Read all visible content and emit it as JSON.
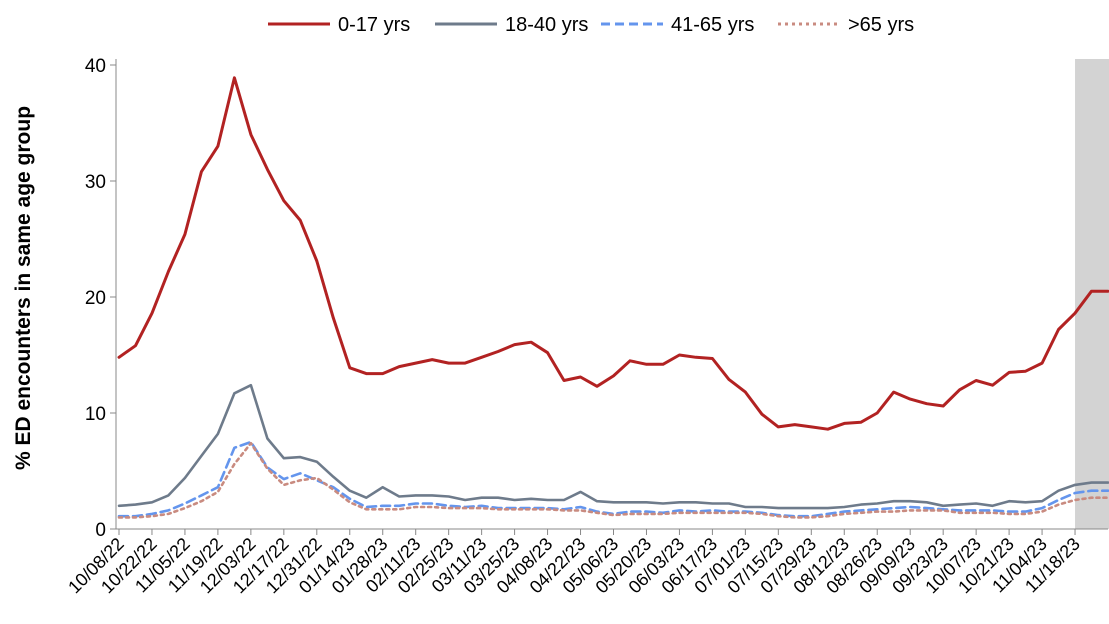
{
  "chart_data": {
    "type": "line",
    "title": "",
    "xlabel": "",
    "ylabel": "% ED encounters in same age group",
    "ylim": [
      0,
      40
    ],
    "yticks": [
      0,
      10,
      20,
      30,
      40
    ],
    "grid": false,
    "legend_position": "top",
    "x_tick_labels": [
      "10/08/22",
      "10/22/22",
      "11/05/22",
      "11/19/22",
      "12/03/22",
      "12/17/22",
      "12/31/22",
      "01/14/23",
      "01/28/23",
      "02/11/23",
      "02/25/23",
      "03/11/23",
      "03/25/23",
      "04/08/23",
      "04/22/23",
      "05/06/23",
      "05/20/23",
      "06/03/23",
      "06/17/23",
      "07/01/23",
      "07/15/23",
      "07/29/23",
      "08/12/23",
      "08/26/23",
      "09/09/23",
      "09/23/23",
      "10/07/23",
      "10/21/23",
      "11/04/23",
      "11/18/23"
    ],
    "x": [
      "10/08/22",
      "10/15/22",
      "10/22/22",
      "10/29/22",
      "11/05/22",
      "11/12/22",
      "11/19/22",
      "11/26/22",
      "12/03/22",
      "12/10/22",
      "12/17/22",
      "12/24/22",
      "12/31/22",
      "01/07/23",
      "01/14/23",
      "01/21/23",
      "01/28/23",
      "02/04/23",
      "02/11/23",
      "02/18/23",
      "02/25/23",
      "03/04/23",
      "03/11/23",
      "03/18/23",
      "03/25/23",
      "04/01/23",
      "04/08/23",
      "04/15/23",
      "04/22/23",
      "04/29/23",
      "05/06/23",
      "05/13/23",
      "05/20/23",
      "05/27/23",
      "06/03/23",
      "06/10/23",
      "06/17/23",
      "06/24/23",
      "07/01/23",
      "07/08/23",
      "07/15/23",
      "07/22/23",
      "07/29/23",
      "08/05/23",
      "08/12/23",
      "08/19/23",
      "08/26/23",
      "09/02/23",
      "09/09/23",
      "09/16/23",
      "09/23/23",
      "09/30/23",
      "10/07/23",
      "10/14/23",
      "10/21/23",
      "10/28/23",
      "11/04/23",
      "11/11/23",
      "11/18/23",
      "11/25/23",
      "12/02/23"
    ],
    "shaded_region": {
      "from": "11/18/23",
      "to": "12/02/23",
      "color": "#d3d3d3"
    },
    "series": [
      {
        "name": "0-17 yrs",
        "color": "#b22222",
        "dash": "solid",
        "values": [
          14.8,
          15.8,
          18.6,
          22.2,
          25.4,
          30.8,
          33.0,
          38.9,
          34.0,
          31.0,
          28.3,
          26.6,
          23.1,
          18.2,
          13.9,
          13.4,
          13.4,
          14.0,
          14.3,
          14.6,
          14.3,
          14.3,
          14.8,
          15.3,
          15.9,
          16.1,
          15.2,
          12.8,
          13.1,
          12.3,
          13.2,
          14.5,
          14.2,
          14.2,
          15.0,
          14.8,
          14.7,
          12.9,
          11.8,
          9.9,
          8.8,
          9.0,
          8.8,
          8.6,
          9.1,
          9.2,
          10.0,
          11.8,
          11.2,
          10.8,
          10.6,
          12.0,
          12.8,
          12.4,
          13.5,
          13.6,
          14.3,
          17.2,
          18.6,
          20.5,
          20.5
        ]
      },
      {
        "name": "18-40 yrs",
        "color": "#6e7b8b",
        "dash": "solid",
        "values": [
          2.0,
          2.1,
          2.3,
          2.9,
          4.4,
          6.3,
          8.2,
          11.7,
          12.4,
          7.8,
          6.1,
          6.2,
          5.8,
          4.5,
          3.3,
          2.7,
          3.6,
          2.8,
          2.9,
          2.9,
          2.8,
          2.5,
          2.7,
          2.7,
          2.5,
          2.6,
          2.5,
          2.5,
          3.2,
          2.4,
          2.3,
          2.3,
          2.3,
          2.2,
          2.3,
          2.3,
          2.2,
          2.2,
          1.9,
          1.9,
          1.8,
          1.8,
          1.8,
          1.8,
          1.9,
          2.1,
          2.2,
          2.4,
          2.4,
          2.3,
          2.0,
          2.1,
          2.2,
          2.0,
          2.4,
          2.3,
          2.4,
          3.3,
          3.8,
          4.0,
          4.0
        ]
      },
      {
        "name": "41-65 yrs",
        "color": "#6495ed",
        "dash": "dashed",
        "values": [
          1.1,
          1.1,
          1.3,
          1.6,
          2.2,
          2.9,
          3.6,
          7.0,
          7.5,
          5.3,
          4.3,
          4.8,
          4.2,
          3.6,
          2.6,
          1.9,
          2.0,
          2.0,
          2.2,
          2.2,
          2.0,
          1.9,
          2.0,
          1.8,
          1.8,
          1.8,
          1.8,
          1.7,
          1.9,
          1.5,
          1.3,
          1.5,
          1.5,
          1.4,
          1.6,
          1.5,
          1.6,
          1.5,
          1.5,
          1.4,
          1.2,
          1.1,
          1.1,
          1.3,
          1.5,
          1.6,
          1.7,
          1.8,
          1.9,
          1.8,
          1.7,
          1.6,
          1.6,
          1.6,
          1.5,
          1.5,
          1.8,
          2.5,
          3.1,
          3.3,
          3.3
        ]
      },
      {
        "name": ">65 yrs",
        "color": "#c98b80",
        "dash": "dotted",
        "values": [
          1.0,
          1.0,
          1.1,
          1.3,
          1.8,
          2.4,
          3.2,
          5.6,
          7.4,
          5.2,
          3.8,
          4.2,
          4.4,
          3.4,
          2.3,
          1.7,
          1.7,
          1.7,
          1.9,
          1.9,
          1.8,
          1.8,
          1.8,
          1.7,
          1.7,
          1.7,
          1.7,
          1.6,
          1.6,
          1.4,
          1.2,
          1.3,
          1.3,
          1.3,
          1.4,
          1.4,
          1.4,
          1.4,
          1.4,
          1.3,
          1.1,
          1.0,
          1.0,
          1.1,
          1.3,
          1.4,
          1.5,
          1.5,
          1.6,
          1.6,
          1.6,
          1.4,
          1.4,
          1.4,
          1.3,
          1.3,
          1.5,
          2.1,
          2.5,
          2.7,
          2.7
        ]
      }
    ]
  }
}
